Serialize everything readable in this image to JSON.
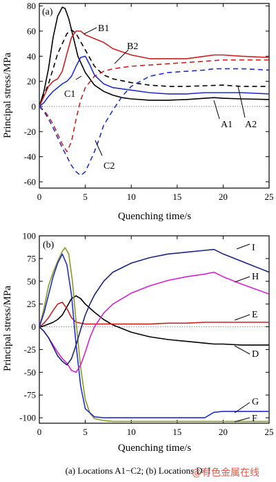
{
  "caption": "(a) Locations A1−C2; (b) Locations D−I",
  "watermark": "@有色金属在线",
  "chart_data": [
    {
      "type": "line",
      "panel_label": "(a)",
      "xlabel": "Quenching time/s",
      "ylabel": "Principal stress/MPa",
      "xlim": [
        0,
        25
      ],
      "ylim": [
        -65,
        82
      ],
      "xticks": [
        0,
        5,
        10,
        15,
        20,
        25
      ],
      "yticks": [
        -60,
        -40,
        -20,
        0,
        20,
        40,
        60,
        80
      ],
      "zero_line": true,
      "series": [
        {
          "name": "A1",
          "color": "#000000",
          "dash": false,
          "x": [
            0,
            0.5,
            1,
            1.5,
            2,
            2.5,
            2.8,
            3.2,
            3.7,
            4.2,
            5,
            6,
            7,
            8,
            9,
            10,
            12,
            14,
            16,
            18,
            19,
            20,
            22,
            25
          ],
          "y": [
            0,
            12,
            30,
            55,
            72,
            79,
            78,
            70,
            55,
            40,
            27,
            17,
            12,
            9,
            7,
            6,
            5,
            5,
            5.5,
            6.5,
            7,
            6.5,
            6,
            5.5
          ]
        },
        {
          "name": "A2",
          "color": "#000000",
          "dash": true,
          "x": [
            0,
            1,
            2,
            3,
            3.5,
            4,
            5,
            6,
            7,
            8,
            10,
            12,
            14,
            16,
            18,
            20,
            22,
            25
          ],
          "y": [
            0,
            18,
            42,
            58,
            61,
            58,
            45,
            32,
            25,
            22,
            19,
            17,
            16,
            16,
            16.5,
            17,
            16,
            16
          ]
        },
        {
          "name": "B1",
          "color": "#cc1f1f",
          "dash": false,
          "x": [
            0,
            0.5,
            1,
            1.5,
            2,
            2.5,
            3,
            3.5,
            4,
            4.5,
            5,
            6,
            7,
            8,
            10,
            12,
            14,
            16,
            18,
            19,
            20,
            22,
            25
          ],
          "y": [
            0,
            8,
            16,
            20,
            22,
            28,
            42,
            55,
            60,
            60,
            57,
            54,
            51,
            46,
            41,
            38,
            38,
            38,
            40,
            41,
            41,
            40,
            39
          ]
        },
        {
          "name": "B2",
          "color": "#cc1f1f",
          "dash": true,
          "x": [
            0,
            0.5,
            1,
            1.5,
            2,
            2.5,
            3,
            3.5,
            4,
            4.5,
            5,
            6,
            7,
            8,
            10,
            12,
            14,
            16,
            18,
            20,
            22,
            25
          ],
          "y": [
            0,
            -3,
            -8,
            -14,
            -22,
            -30,
            -36,
            -28,
            -10,
            5,
            15,
            24,
            28,
            30,
            32,
            33,
            34,
            35,
            36,
            37,
            37,
            37
          ]
        },
        {
          "name": "C1",
          "color": "#1f2fc8",
          "dash": false,
          "x": [
            0,
            0.5,
            1,
            1.5,
            2,
            2.5,
            3,
            3.5,
            4,
            4.5,
            5,
            5.5,
            6,
            7,
            8,
            10,
            12,
            14,
            16,
            18,
            20,
            22,
            25
          ],
          "y": [
            0,
            3,
            8,
            12,
            15,
            18,
            20,
            24,
            32,
            39,
            40,
            33,
            25,
            18,
            15,
            13,
            11,
            10,
            10,
            11,
            11,
            11,
            10
          ]
        },
        {
          "name": "C2",
          "color": "#1f2fc8",
          "dash": true,
          "x": [
            0,
            0.5,
            1,
            1.5,
            2,
            2.5,
            3,
            3.5,
            4,
            4.5,
            5,
            5.5,
            6,
            6.5,
            7,
            8,
            9,
            10,
            12,
            14,
            16,
            18,
            19,
            20,
            22,
            25
          ],
          "y": [
            0,
            -4,
            -10,
            -17,
            -25,
            -33,
            -40,
            -47,
            -52,
            -55,
            -52,
            -44,
            -36,
            -26,
            -15,
            -3,
            8,
            16,
            24,
            27,
            28,
            29,
            30,
            30,
            30,
            29
          ]
        }
      ]
    },
    {
      "type": "line",
      "panel_label": "(b)",
      "xlabel": "Quenching time/s",
      "ylabel": "Principal stress/MPa",
      "xlim": [
        0,
        25
      ],
      "ylim": [
        -106,
        100
      ],
      "xticks": [
        0,
        5,
        10,
        15,
        20,
        25
      ],
      "yticks": [
        -100,
        -75,
        -50,
        -25,
        0,
        25,
        50,
        75,
        100
      ],
      "zero_line": true,
      "series": [
        {
          "name": "D",
          "color": "#000000",
          "dash": false,
          "x": [
            0,
            0.5,
            1,
            1.5,
            2,
            2.5,
            3,
            3.5,
            4,
            4.5,
            5,
            6,
            7,
            8,
            10,
            12,
            14,
            16,
            18,
            19,
            20,
            22,
            25
          ],
          "y": [
            0,
            1,
            3,
            5,
            8,
            13,
            22,
            31,
            34,
            31,
            25,
            16,
            8,
            2,
            -6,
            -11,
            -14,
            -16,
            -18,
            -19,
            -19,
            -20,
            -20
          ]
        },
        {
          "name": "E",
          "color": "#cc1f1f",
          "dash": false,
          "x": [
            0,
            0.5,
            1,
            1.5,
            2,
            2.5,
            3,
            3.5,
            4,
            5,
            6,
            8,
            10,
            12,
            14,
            16,
            18,
            19,
            20,
            22,
            25
          ],
          "y": [
            0,
            4,
            10,
            18,
            25,
            27,
            20,
            10,
            5,
            3,
            3,
            3,
            3,
            3,
            4,
            4,
            5,
            5,
            5,
            5,
            5
          ]
        },
        {
          "name": "F",
          "color": "#8a9a1e",
          "dash": false,
          "x": [
            0,
            0.5,
            1,
            1.5,
            2,
            2.5,
            2.8,
            3.2,
            3.6,
            4,
            4.5,
            5,
            5.5,
            6,
            7,
            8,
            10,
            15,
            20,
            25
          ],
          "y": [
            0,
            20,
            45,
            60,
            72,
            83,
            87,
            80,
            50,
            5,
            -45,
            -80,
            -95,
            -101,
            -103,
            -104,
            -104,
            -104,
            -104,
            -104
          ]
        },
        {
          "name": "G",
          "color": "#1f2fc8",
          "dash": false,
          "x": [
            0,
            0.5,
            1,
            1.5,
            2,
            2.5,
            3,
            3.5,
            4,
            4.5,
            5,
            6,
            7,
            8,
            10,
            12,
            14,
            16,
            18,
            19,
            20,
            22,
            25
          ],
          "y": [
            0,
            15,
            35,
            55,
            70,
            80,
            68,
            35,
            -20,
            -65,
            -90,
            -99,
            -100,
            -100,
            -100,
            -100,
            -100,
            -100,
            -100,
            -94,
            -93,
            -93,
            -93
          ]
        },
        {
          "name": "H",
          "color": "#d51fd5",
          "dash": false,
          "x": [
            0,
            0.5,
            1,
            1.5,
            2,
            2.5,
            3,
            3.5,
            4,
            4.5,
            5,
            5.5,
            6,
            7,
            8,
            10,
            12,
            14,
            16,
            18,
            19,
            20,
            22,
            25
          ],
          "y": [
            0,
            -5,
            -12,
            -20,
            -28,
            -35,
            -40,
            -48,
            -50,
            -42,
            -28,
            -12,
            0,
            15,
            25,
            37,
            45,
            51,
            55,
            58,
            60,
            55,
            47,
            36
          ]
        },
        {
          "name": "I",
          "color": "#1a237e",
          "dash": false,
          "x": [
            0,
            0.5,
            1,
            1.5,
            2,
            2.5,
            3,
            3.5,
            4,
            4.5,
            5,
            5.5,
            6,
            7,
            8,
            10,
            12,
            14,
            16,
            18,
            19,
            20,
            22,
            25
          ],
          "y": [
            0,
            -5,
            -12,
            -22,
            -32,
            -38,
            -42,
            -35,
            -20,
            -3,
            13,
            25,
            35,
            50,
            60,
            70,
            76,
            80,
            82,
            84,
            85,
            80,
            72,
            60
          ]
        }
      ]
    }
  ]
}
